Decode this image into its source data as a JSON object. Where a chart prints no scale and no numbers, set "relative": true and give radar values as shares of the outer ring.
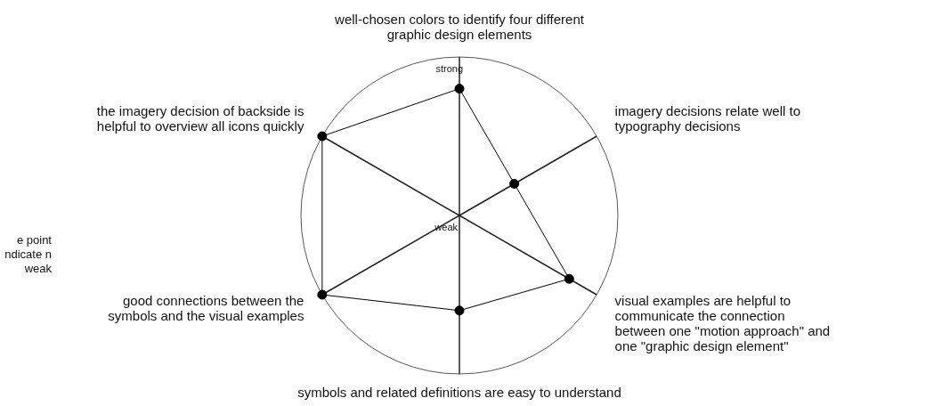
{
  "chart_data": {
    "type": "radar",
    "relative": true,
    "categories": [
      "well-chosen colors to identify four different graphic design elements",
      "imagery decisions relate well to typography decisions",
      "visual examples are helpful to communicate the connection between one \"motion approach\" and one \"graphic design element\"",
      "symbols and related definitions are easy to understand",
      "good connections between the symbols and the visual examples",
      "the imagery decision of backside is helpful to overview all icons quickly"
    ],
    "series": [
      {
        "color": "#000000",
        "values": [
          0.8,
          0.4,
          0.8,
          0.6,
          1,
          1
        ]
      }
    ],
    "marker": "circle",
    "annotations": [
      "strong",
      "weak",
      "e point ndicate n weak"
    ]
  }
}
